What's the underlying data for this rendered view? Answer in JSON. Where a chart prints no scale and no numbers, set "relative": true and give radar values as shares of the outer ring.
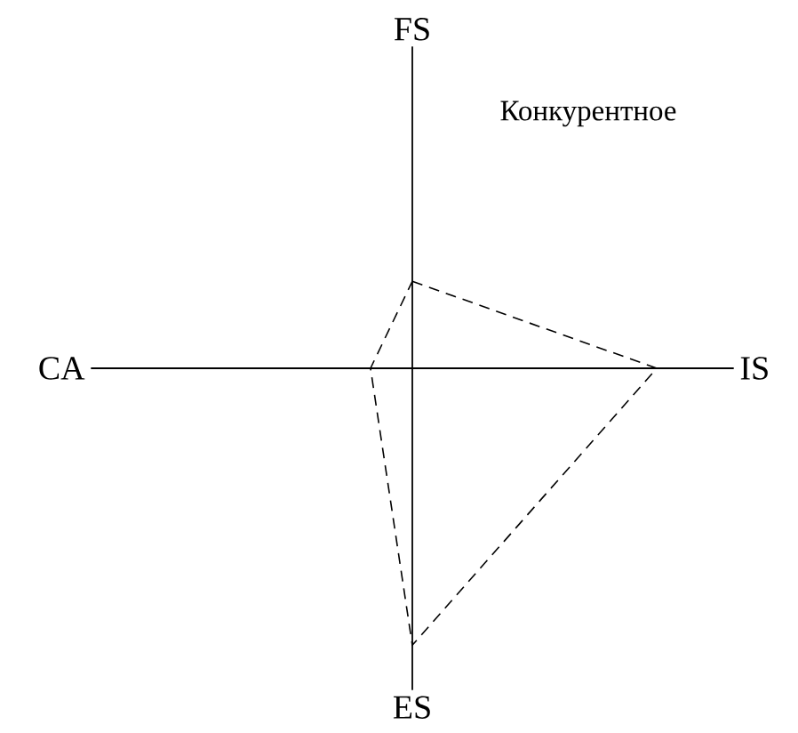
{
  "chart_data": {
    "type": "radar",
    "title": "Конкурентное",
    "categories": [
      "FS",
      "IS",
      "ES",
      "CA"
    ],
    "relative": true,
    "series": [
      {
        "color": "#000000",
        "values": [
          0.27,
          0.76,
          0.86,
          0.13
        ]
      }
    ],
    "line_style": "dashed"
  }
}
